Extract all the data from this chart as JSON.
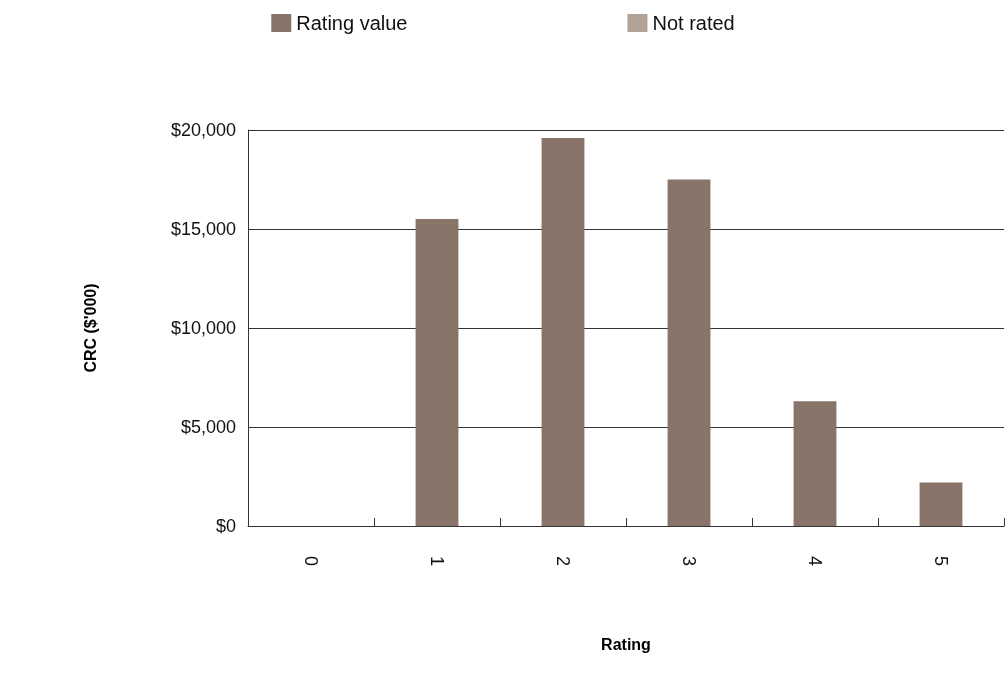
{
  "chart_data": {
    "type": "bar",
    "xlabel": "Rating",
    "ylabel": "CRC ($'000)",
    "categories": [
      "0",
      "1",
      "2",
      "3",
      "4",
      "5"
    ],
    "series": [
      {
        "name": "Rating value",
        "color": "#887468",
        "values": [
          null,
          15500,
          19600,
          17500,
          6300,
          2200
        ]
      },
      {
        "name": "Not rated",
        "color": "#b1a298",
        "values": [
          0,
          null,
          null,
          null,
          null,
          null
        ]
      }
    ],
    "stacked": true,
    "ylim": [
      0,
      20000
    ],
    "yticks": [
      {
        "value": 0,
        "label": "$0"
      },
      {
        "value": 5000,
        "label": "$5,000"
      },
      {
        "value": 10000,
        "label": "$10,000"
      },
      {
        "value": 15000,
        "label": "$15,000"
      },
      {
        "value": 20000,
        "label": "$20,000"
      }
    ],
    "grid": "y",
    "legend": "top"
  }
}
